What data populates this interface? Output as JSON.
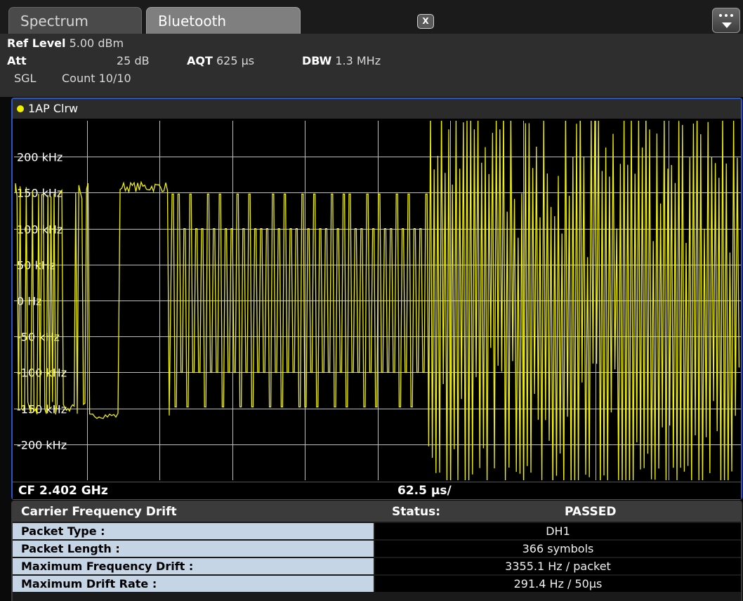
{
  "tabs": [
    {
      "label": "Spectrum",
      "active": false
    },
    {
      "label": "Bluetooth",
      "active": true,
      "close_label": "X"
    }
  ],
  "header": {
    "ref_level": {
      "label": "Ref Level",
      "value": "5.00 dBm"
    },
    "att": {
      "label": "Att",
      "value": "25 dB"
    },
    "aqt": {
      "label": "AQT",
      "value": "625 µs"
    },
    "dbw": {
      "label": "DBW",
      "value": "1.3 MHz"
    },
    "sgl": "SGL",
    "count": "Count 10/10"
  },
  "diagram": {
    "trace_label": "1AP Clrw",
    "trace_color": "#f0f000",
    "y_tick_labels": [
      "200 kHz",
      "150 kHz",
      "100 kHz",
      "50 kHz",
      "0 Hz",
      "-50 kHz",
      "-100 kHz",
      "-150 kHz",
      "-200 kHz"
    ],
    "center_frequency": "CF 2.402 GHz",
    "span_per_div": "62.5 µs/",
    "grid": true
  },
  "results": {
    "title": "Carrier Frequency Drift",
    "status_label": "Status:",
    "status_value": "PASSED",
    "rows": [
      {
        "label": "Packet Type :",
        "value": "DH1"
      },
      {
        "label": "Packet Length :",
        "value": "366 symbols"
      },
      {
        "label": "Maximum Frequency Drift :",
        "value": "3355.1 Hz / packet"
      },
      {
        "label": "Maximum Drift Rate :",
        "value": "291.4 Hz / 50µs"
      }
    ]
  }
}
